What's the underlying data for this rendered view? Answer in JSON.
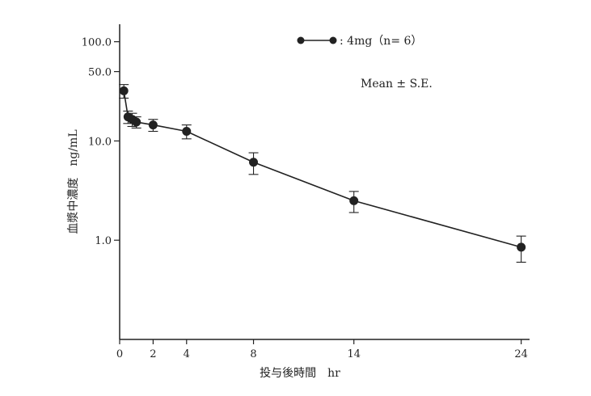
{
  "chart_data": {
    "type": "line",
    "xlabel": "投与後時間　hr",
    "ylabel": "血漿中濃度　ng/mL",
    "y_scale": "log",
    "ylim": [
      0.1,
      150
    ],
    "xlim": [
      0,
      24.5
    ],
    "x_ticks": [
      0,
      2,
      4,
      8,
      14,
      24
    ],
    "x_tick_labels": [
      "0",
      "2",
      "4",
      "8",
      "14",
      "24"
    ],
    "y_ticks": [
      1.0,
      10.0,
      50.0,
      100.0
    ],
    "y_tick_labels": [
      "1.0",
      "10.0",
      "50.0",
      "100.0"
    ],
    "legend": {
      "label": ": 4mg（n= 6）",
      "note": "Mean ± S.E."
    },
    "color": "#222222",
    "series": [
      {
        "name": "4mg（n= 6）",
        "x": [
          0.25,
          0.5,
          0.75,
          1,
          2,
          4,
          8,
          14,
          24
        ],
        "y": [
          32,
          17.5,
          16.5,
          15.5,
          14.5,
          12.5,
          6.1,
          2.5,
          0.85
        ],
        "err": [
          5,
          2.5,
          2.5,
          2.0,
          2.0,
          2.0,
          1.5,
          0.6,
          0.25
        ]
      }
    ]
  }
}
